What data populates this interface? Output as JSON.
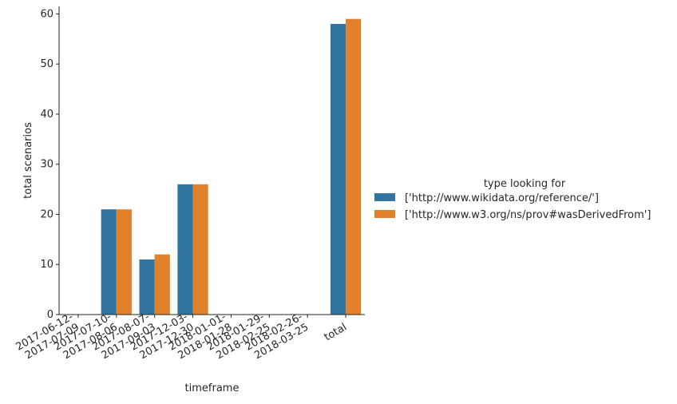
{
  "chart_data": {
    "type": "bar",
    "xlabel": "timeframe",
    "ylabel": "total scenarios",
    "ylim": [
      0,
      61.5
    ],
    "yticks": [
      0,
      10,
      20,
      30,
      40,
      50,
      60
    ],
    "grid": false,
    "legend_placement": "right",
    "legend_title": "type looking for",
    "categories": [
      "2017-06-12-\n2017-07-09",
      "2017-07-10-\n2017-08-06",
      "2017-08-07-\n2017-09-03",
      "2017-12-03-\n2017-12-30",
      "2018-01-01-\n2018-01-28",
      "2018-01-29-\n2018-02-25",
      "2018-02-26-\n2018-03-25",
      "total"
    ],
    "series": [
      {
        "name": "['http://www.wikidata.org/reference/']",
        "color": "#3274a1",
        "values": [
          0,
          21,
          11,
          26,
          0,
          0,
          0,
          58
        ]
      },
      {
        "name": "['http://www.w3.org/ns/prov#wasDerivedFrom']",
        "color": "#e1812c",
        "values": [
          0,
          21,
          12,
          26,
          0,
          0,
          0,
          59
        ]
      }
    ]
  }
}
